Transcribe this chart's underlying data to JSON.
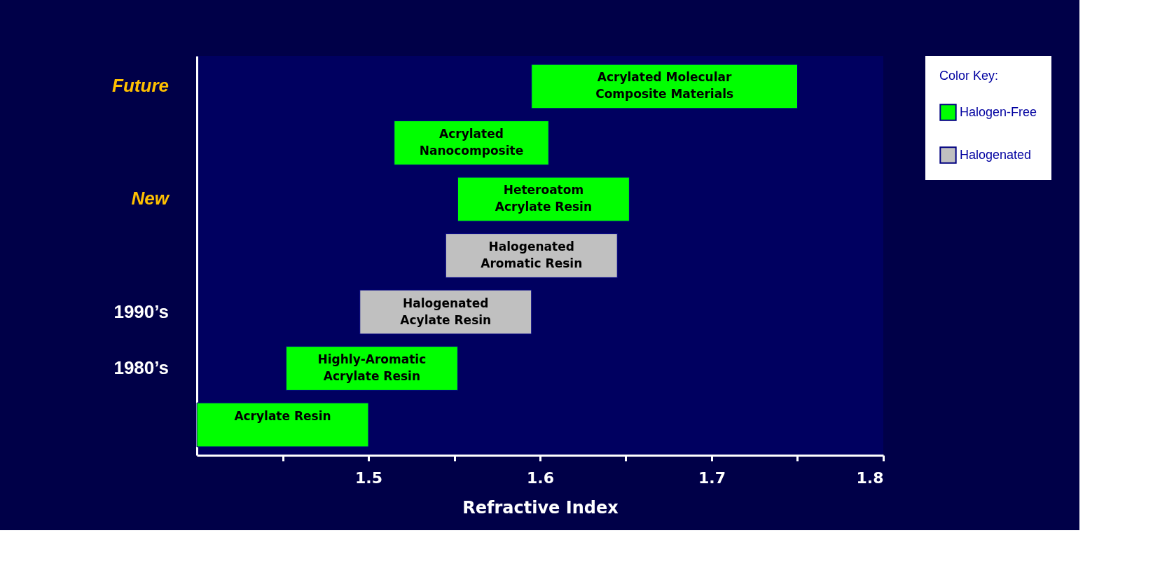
{
  "chart_data": {
    "type": "bar",
    "orientation": "horizontal",
    "xlabel": "Refractive Index",
    "legend_title": "Color Key:",
    "categories": [
      "Acrylated Molecular Composite Materials",
      "Acrylated Nanocomposite",
      "Heteroatom Acrylate Resin",
      "Halogenated Aromatic Resin",
      "Halogenated Acylate Resin",
      "Highly-Aromatic Acrylate Resin",
      "Acrylate Resin"
    ],
    "series": [
      {
        "name": "Halogen-Free",
        "color": "#00ff00",
        "base": [
          1.595,
          1.515,
          1.552,
          null,
          null,
          1.452,
          1.4
        ],
        "values": [
          0.155,
          0.09,
          0.1,
          null,
          null,
          0.1,
          0.1
        ]
      },
      {
        "name": "Halogenated",
        "color": "#c0c0c0",
        "base": [
          null,
          null,
          null,
          1.545,
          1.495,
          null,
          null
        ],
        "values": [
          null,
          null,
          null,
          0.1,
          0.1,
          null,
          null
        ]
      }
    ],
    "xlim": [
      1.4,
      1.8
    ],
    "xticks": [
      {
        "value": 1.45,
        "label": null
      },
      1.5,
      {
        "value": 1.55,
        "label": null
      },
      1.6,
      {
        "value": 1.65,
        "label": null
      },
      1.7,
      {
        "value": 1.75,
        "label": null
      },
      1.8
    ],
    "tick_labels": "x",
    "legend": "right",
    "grid": false,
    "annotations": [
      "Future",
      "New",
      "1990’s",
      "1980’s"
    ]
  }
}
